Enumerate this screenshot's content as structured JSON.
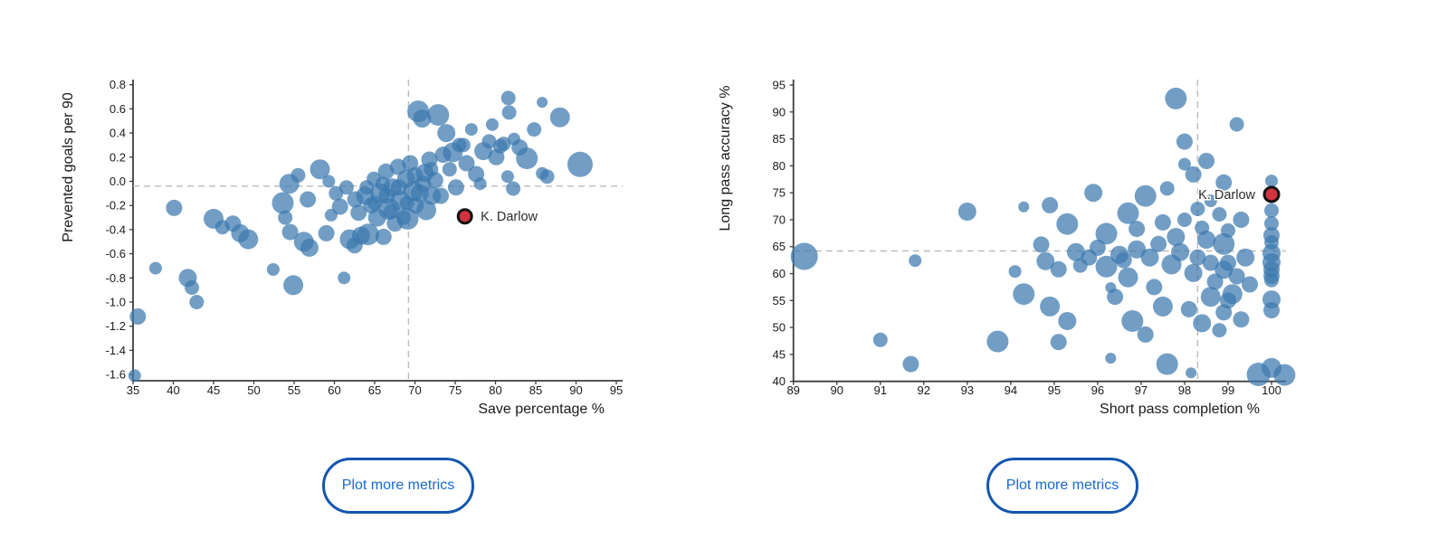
{
  "buttons": [
    {
      "label": "Plot more metrics"
    },
    {
      "label": "Plot more metrics"
    }
  ],
  "colors": {
    "background": "#ffffff",
    "bubble": "#3C78AE",
    "bubble_opacity": 0.72,
    "highlight": "#D2333F",
    "highlight_stroke": "#111111",
    "axis": "#3d3d3d",
    "dashed": "#bbbbbb",
    "tick_text": "#1a1a1a",
    "label_text": "#2b2b2b",
    "button_border": "#1356AE",
    "button_text": "#1B67D2"
  },
  "chart_data": [
    {
      "type": "scatter",
      "title": "",
      "xlabel": "Save percentage %",
      "ylabel": "Prevented goals per 90",
      "xlim": [
        35,
        95
      ],
      "ylim": [
        -1.6,
        0.8
      ],
      "grid": false,
      "legend": "none",
      "x_axis": {
        "tick_values": [
          35,
          40,
          45,
          50,
          55,
          60,
          65,
          70,
          75,
          80,
          85,
          90,
          95
        ],
        "tick_labels": [
          "35",
          "40",
          "45",
          "50",
          "55",
          "60",
          "65",
          "70",
          "75",
          "80",
          "85",
          "90",
          "95"
        ]
      },
      "y_axis": {
        "tick_values": [
          0.8,
          0.6,
          0.4,
          0.2,
          0.0,
          -0.2,
          -0.4,
          -0.6,
          -0.8,
          -1.0,
          -1.2,
          -1.4,
          -1.6
        ],
        "tick_labels": [
          "0.8",
          "0.6",
          "0.4",
          "0.2",
          "0.0",
          "-0.2",
          "-0.4",
          "-0.6",
          "-0.8",
          "-1.0",
          "-1.2",
          "-1.4",
          "-1.6"
        ]
      },
      "avg_lines": {
        "x": 69.2,
        "y": -0.04
      },
      "highlight": {
        "label": "K. Darlow",
        "x": 76.2,
        "y": -0.29,
        "r": 7.5,
        "label_side": "right"
      },
      "points": [
        [
          35.2,
          -1.61,
          7
        ],
        [
          35.6,
          -1.12,
          9
        ],
        [
          37.8,
          -0.72,
          7
        ],
        [
          40.1,
          -0.22,
          9
        ],
        [
          41.8,
          -0.8,
          10
        ],
        [
          42.3,
          -0.88,
          8
        ],
        [
          42.9,
          -1.0,
          8
        ],
        [
          45.0,
          -0.31,
          11
        ],
        [
          46.1,
          -0.38,
          8
        ],
        [
          47.4,
          -0.35,
          9
        ],
        [
          48.3,
          -0.43,
          10
        ],
        [
          49.3,
          -0.48,
          11
        ],
        [
          52.4,
          -0.73,
          7
        ],
        [
          54.9,
          -0.86,
          11
        ],
        [
          61.2,
          -0.8,
          7
        ],
        [
          53.6,
          -0.18,
          12
        ],
        [
          54.4,
          -0.02,
          11
        ],
        [
          55.5,
          0.05,
          8
        ],
        [
          56.7,
          -0.15,
          9
        ],
        [
          53.9,
          -0.3,
          8
        ],
        [
          54.5,
          -0.42,
          9
        ],
        [
          56.2,
          -0.5,
          11
        ],
        [
          56.9,
          -0.55,
          10
        ],
        [
          58.2,
          0.1,
          11
        ],
        [
          59.0,
          -0.43,
          9
        ],
        [
          59.6,
          -0.28,
          7
        ],
        [
          60.7,
          -0.21,
          9
        ],
        [
          61.9,
          -0.48,
          11
        ],
        [
          62.5,
          -0.53,
          9
        ],
        [
          63.3,
          -0.45,
          10
        ],
        [
          63.0,
          -0.26,
          9
        ],
        [
          63.8,
          -0.12,
          10
        ],
        [
          64.2,
          -0.44,
          12
        ],
        [
          64.6,
          -0.2,
          9
        ],
        [
          64.9,
          0.02,
          8
        ],
        [
          65.3,
          -0.3,
          10
        ],
        [
          65.7,
          -0.1,
          11
        ],
        [
          66.1,
          -0.46,
          9
        ],
        [
          66.4,
          0.08,
          9
        ],
        [
          66.8,
          -0.23,
          12
        ],
        [
          67.2,
          -0.05,
          10
        ],
        [
          67.5,
          -0.35,
          9
        ],
        [
          67.9,
          0.12,
          9
        ],
        [
          68.2,
          -0.16,
          11
        ],
        [
          68.6,
          -0.3,
          8
        ],
        [
          68.9,
          0.02,
          10
        ],
        [
          69.1,
          -0.31,
          12
        ],
        [
          69.4,
          0.15,
          9
        ],
        [
          69.8,
          -0.08,
          11
        ],
        [
          70.1,
          -0.2,
          9
        ],
        [
          70.4,
          0.58,
          12
        ],
        [
          70.9,
          0.52,
          10
        ],
        [
          71.2,
          0.07,
          10
        ],
        [
          71.4,
          -0.24,
          11
        ],
        [
          71.8,
          0.18,
          9
        ],
        [
          72.1,
          -0.12,
          10
        ],
        [
          72.5,
          0.01,
          9
        ],
        [
          72.9,
          0.55,
          12
        ],
        [
          73.2,
          -0.12,
          9
        ],
        [
          73.5,
          0.22,
          9
        ],
        [
          73.9,
          0.4,
          10
        ],
        [
          74.3,
          0.1,
          8
        ],
        [
          74.7,
          0.24,
          11
        ],
        [
          75.1,
          -0.05,
          9
        ],
        [
          75.5,
          0.3,
          8
        ],
        [
          65.0,
          -0.18,
          8
        ],
        [
          66.0,
          -0.02,
          8
        ],
        [
          67.0,
          -0.25,
          8
        ],
        [
          68.0,
          -0.05,
          9
        ],
        [
          69.0,
          -0.18,
          8
        ],
        [
          70.0,
          0.05,
          9
        ],
        [
          70.6,
          -0.1,
          10
        ],
        [
          71.0,
          -0.02,
          9
        ],
        [
          72.0,
          0.1,
          8
        ],
        [
          66.5,
          -0.12,
          9
        ],
        [
          64.0,
          -0.05,
          8
        ],
        [
          62.6,
          -0.15,
          9
        ],
        [
          61.5,
          -0.05,
          8
        ],
        [
          60.2,
          -0.1,
          8
        ],
        [
          59.3,
          0.0,
          7
        ],
        [
          76.0,
          0.3,
          8
        ],
        [
          76.4,
          0.15,
          9
        ],
        [
          77.0,
          0.43,
          7
        ],
        [
          77.6,
          0.06,
          9
        ],
        [
          78.1,
          -0.02,
          7
        ],
        [
          78.5,
          0.25,
          10
        ],
        [
          79.2,
          0.33,
          8
        ],
        [
          79.6,
          0.47,
          7
        ],
        [
          80.1,
          0.2,
          9
        ],
        [
          80.6,
          0.29,
          8
        ],
        [
          81.0,
          0.31,
          8
        ],
        [
          81.5,
          0.04,
          7
        ],
        [
          81.7,
          0.57,
          8
        ],
        [
          81.6,
          0.69,
          8
        ],
        [
          82.3,
          0.35,
          7
        ],
        [
          82.2,
          -0.06,
          8
        ],
        [
          83.0,
          0.28,
          9
        ],
        [
          83.9,
          0.19,
          12
        ],
        [
          84.8,
          0.43,
          8
        ],
        [
          85.8,
          0.655,
          6
        ],
        [
          85.8,
          0.065,
          7
        ],
        [
          86.4,
          0.04,
          8
        ],
        [
          88.0,
          0.53,
          11
        ],
        [
          90.5,
          0.14,
          14
        ]
      ]
    },
    {
      "type": "scatter",
      "title": "",
      "xlabel": "Short pass completion %",
      "ylabel": "Long pass accuracy %",
      "xlim": [
        89,
        100
      ],
      "ylim": [
        40,
        95
      ],
      "grid": false,
      "legend": "none",
      "x_axis": {
        "tick_values": [
          89,
          90,
          91,
          92,
          93,
          94,
          95,
          96,
          97,
          98,
          99,
          100
        ],
        "tick_labels": [
          "89",
          "90",
          "91",
          "92",
          "93",
          "94",
          "95",
          "96",
          "97",
          "98",
          "99",
          "100"
        ]
      },
      "y_axis": {
        "tick_values": [
          95,
          90,
          85,
          80,
          75,
          70,
          65,
          60,
          55,
          50,
          45,
          40
        ],
        "tick_labels": [
          "95",
          "90",
          "85",
          "80",
          "75",
          "70",
          "65",
          "60",
          "55",
          "50",
          "45",
          "40"
        ]
      },
      "avg_lines": {
        "x": 98.3,
        "y": 64.2
      },
      "highlight": {
        "label": "K. Darlow",
        "x": 100,
        "y": 74.7,
        "r": 8,
        "label_side": "left"
      },
      "points": [
        [
          89.25,
          63.2,
          15
        ],
        [
          91.0,
          47.7,
          8
        ],
        [
          91.7,
          43.2,
          9
        ],
        [
          91.8,
          62.4,
          7
        ],
        [
          93.0,
          71.5,
          10
        ],
        [
          93.7,
          47.4,
          12
        ],
        [
          94.3,
          72.4,
          6
        ],
        [
          94.9,
          72.7,
          9
        ],
        [
          94.7,
          65.4,
          9
        ],
        [
          94.8,
          62.3,
          10
        ],
        [
          95.1,
          60.8,
          9
        ],
        [
          94.3,
          56.2,
          12
        ],
        [
          94.9,
          53.9,
          11
        ],
        [
          95.1,
          47.3,
          9
        ],
        [
          95.3,
          69.2,
          12
        ],
        [
          95.9,
          75.0,
          10
        ],
        [
          96.2,
          67.4,
          12
        ],
        [
          96.2,
          61.3,
          12
        ],
        [
          96.3,
          57.4,
          6
        ],
        [
          96.4,
          55.7,
          9
        ],
        [
          96.3,
          44.3,
          6
        ],
        [
          96.7,
          71.2,
          12
        ],
        [
          96.7,
          59.3,
          11
        ],
        [
          96.8,
          51.2,
          12
        ],
        [
          97.1,
          74.4,
          12
        ],
        [
          97.1,
          48.7,
          9
        ],
        [
          97.5,
          53.9,
          11
        ],
        [
          97.6,
          43.2,
          12
        ],
        [
          97.7,
          61.7,
          11
        ],
        [
          97.8,
          66.8,
          10
        ],
        [
          97.8,
          92.5,
          12
        ],
        [
          98.0,
          84.5,
          9
        ],
        [
          98.0,
          80.3,
          7
        ],
        [
          98.2,
          78.4,
          9
        ],
        [
          98.5,
          80.9,
          9
        ],
        [
          98.2,
          60.1,
          10
        ],
        [
          98.5,
          66.3,
          10
        ],
        [
          98.1,
          53.4,
          9
        ],
        [
          98.6,
          55.7,
          11
        ],
        [
          98.9,
          76.9,
          9
        ],
        [
          98.9,
          65.5,
          12
        ],
        [
          98.9,
          60.7,
          10
        ],
        [
          98.9,
          52.8,
          9
        ],
        [
          99.1,
          56.2,
          11
        ],
        [
          99.2,
          87.7,
          8
        ],
        [
          99.3,
          70.0,
          9
        ],
        [
          99.4,
          63.0,
          10
        ],
        [
          99.0,
          62.0,
          9
        ],
        [
          99.5,
          58.0,
          9
        ],
        [
          99.3,
          51.5,
          9
        ],
        [
          99.7,
          41.3,
          13
        ],
        [
          98.15,
          41.6,
          6
        ],
        [
          95.5,
          64.0,
          10
        ],
        [
          95.8,
          63.0,
          9
        ],
        [
          96.0,
          64.8,
          9
        ],
        [
          96.5,
          63.5,
          10
        ],
        [
          96.9,
          64.5,
          10
        ],
        [
          97.2,
          63.0,
          10
        ],
        [
          97.4,
          65.5,
          9
        ],
        [
          97.9,
          64.0,
          10
        ],
        [
          98.3,
          63.0,
          9
        ],
        [
          98.6,
          62.0,
          9
        ],
        [
          97.3,
          57.5,
          9
        ],
        [
          96.6,
          62.5,
          9
        ],
        [
          95.6,
          61.5,
          8
        ],
        [
          98.4,
          68.5,
          8
        ],
        [
          98.0,
          70.0,
          8
        ],
        [
          98.3,
          72.0,
          8
        ],
        [
          98.6,
          73.5,
          7
        ],
        [
          98.8,
          71.0,
          8
        ],
        [
          99.0,
          68.0,
          8
        ],
        [
          97.5,
          69.5,
          9
        ],
        [
          96.9,
          68.3,
          9
        ],
        [
          98.7,
          58.5,
          9
        ],
        [
          99.2,
          59.5,
          9
        ],
        [
          99.0,
          55.0,
          9
        ],
        [
          98.4,
          50.8,
          10
        ],
        [
          98.8,
          49.5,
          8
        ],
        [
          95.3,
          51.2,
          10
        ],
        [
          94.1,
          60.4,
          7
        ],
        [
          97.6,
          75.8,
          8
        ],
        [
          100,
          77.2,
          7
        ],
        [
          100,
          71.7,
          8
        ],
        [
          100,
          69.3,
          8
        ],
        [
          100,
          67.1,
          9
        ],
        [
          100,
          65.8,
          8
        ],
        [
          100,
          63.8,
          10
        ],
        [
          100,
          62.1,
          10
        ],
        [
          100,
          60.8,
          9
        ],
        [
          100,
          59.6,
          9
        ],
        [
          100,
          58.8,
          8
        ],
        [
          100,
          55.2,
          10
        ],
        [
          100,
          53.2,
          9
        ],
        [
          100,
          42.5,
          11
        ],
        [
          100.3,
          41.2,
          12
        ]
      ]
    }
  ]
}
